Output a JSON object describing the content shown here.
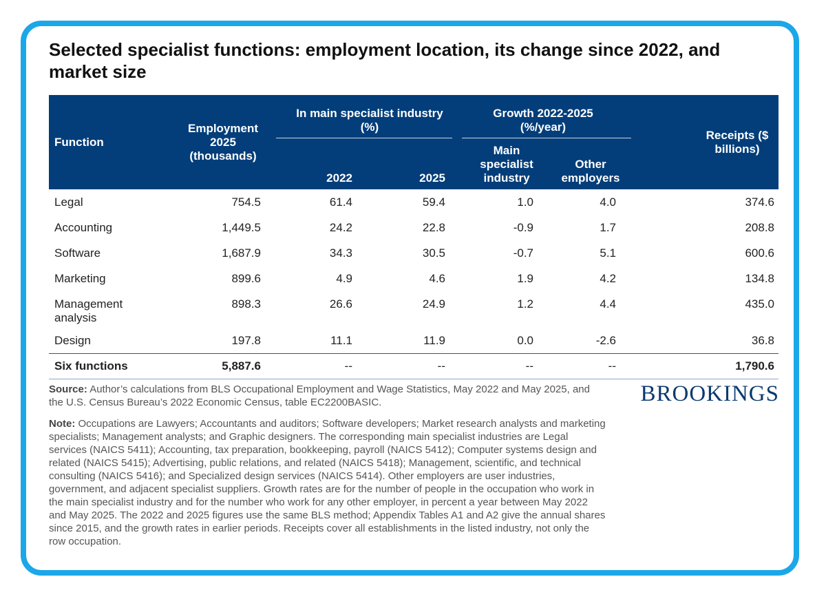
{
  "title": "Selected specialist functions: employment location, its change since 2022, and market size",
  "table": {
    "headers": {
      "function": "Function",
      "employment": "Employment 2025 (thousands)",
      "in_main_group": "In main specialist industry (%)",
      "growth_group": "Growth 2022-2025 (%/year)",
      "receipts": "Receipts ($ billions)",
      "y2022": "2022",
      "y2025": "2025",
      "main_specialist": "Main specialist industry",
      "other_employers": "Other employers"
    },
    "rows": [
      {
        "function": "Legal",
        "employment": "754.5",
        "share2022": "61.4",
        "share2025": "59.4",
        "growth_main": "1.0",
        "growth_other": "4.0",
        "receipts": "374.6"
      },
      {
        "function": "Accounting",
        "employment": "1,449.5",
        "share2022": "24.2",
        "share2025": "22.8",
        "growth_main": "-0.9",
        "growth_other": "1.7",
        "receipts": "208.8"
      },
      {
        "function": "Software",
        "employment": "1,687.9",
        "share2022": "34.3",
        "share2025": "30.5",
        "growth_main": "-0.7",
        "growth_other": "5.1",
        "receipts": "600.6"
      },
      {
        "function": "Marketing",
        "employment": "899.6",
        "share2022": "4.9",
        "share2025": "4.6",
        "growth_main": "1.9",
        "growth_other": "4.2",
        "receipts": "134.8"
      },
      {
        "function": "Management analysis",
        "employment": "898.3",
        "share2022": "26.6",
        "share2025": "24.9",
        "growth_main": "1.2",
        "growth_other": "4.4",
        "receipts": "435.0"
      },
      {
        "function": "Design",
        "employment": "197.8",
        "share2022": "11.1",
        "share2025": "11.9",
        "growth_main": "0.0",
        "growth_other": "-2.6",
        "receipts": "36.8"
      }
    ],
    "total": {
      "function": "Six functions",
      "employment": "5,887.6",
      "share2022": "--",
      "share2025": "--",
      "growth_main": "--",
      "growth_other": "--",
      "receipts": "1,790.6"
    }
  },
  "source": {
    "label": "Source:",
    "text": " Author’s calculations from BLS Occupational Employment and Wage Statistics, May 2022 and May 2025, and the U.S. Census Bureau’s 2022 Economic Census, table EC2200BASIC."
  },
  "note": {
    "label": "Note:",
    "text": " Occupations are Lawyers; Accountants and auditors; Software developers; Market research analysts and marketing specialists; Management analysts; and Graphic designers. The corresponding main specialist industries are Legal services (NAICS 5411); Accounting, tax preparation, bookkeeping, payroll (NAICS 5412); Computer systems design and related (NAICS 5415); Advertising, public relations, and related (NAICS 5418); Management, scientific, and technical consulting (NAICS 5416); and Specialized design services (NAICS 5414). Other employers are user industries, government, and adjacent specialist suppliers. Growth rates are for the number of people in the occupation who work in the main specialist industry and for the number who work for any other employer, in percent a year between May 2022 and May 2025. The 2022 and 2025 figures use the same BLS method; Appendix Tables A1 and A2 give the annual shares since 2015, and the growth rates in earlier periods. Receipts cover all establishments in the listed industry, not only the row occupation."
  },
  "logo": "BROOKINGS",
  "colors": {
    "frame": "#1ba7e8",
    "header_bg": "#033e7a",
    "logo": "#0b3a6e"
  }
}
